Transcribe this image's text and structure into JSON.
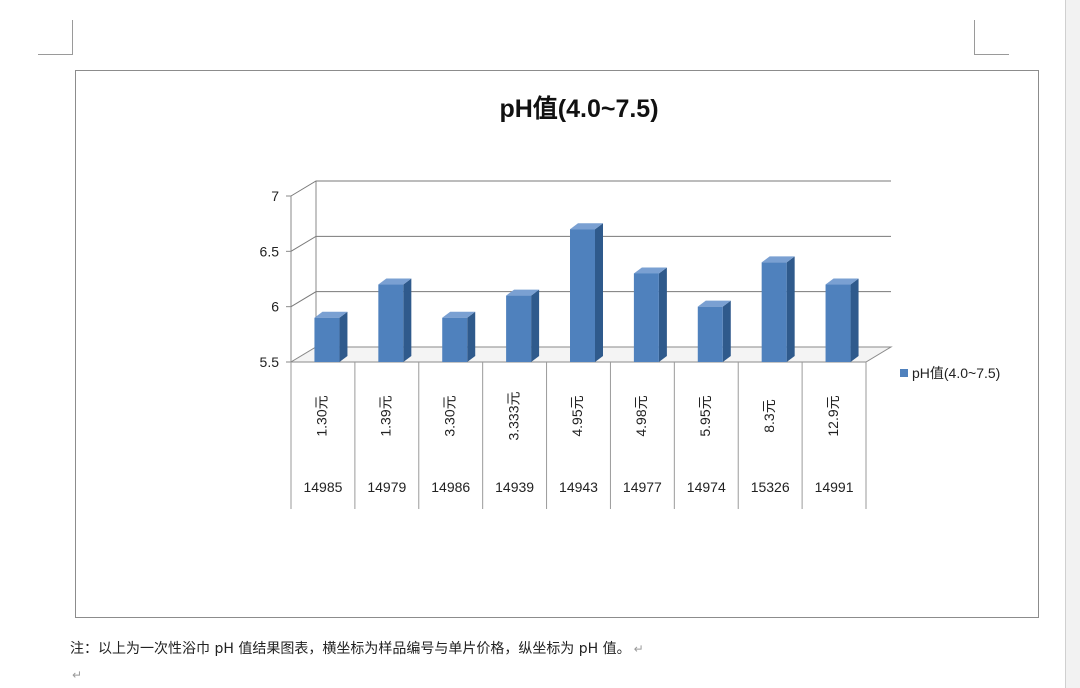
{
  "document": {
    "note": "注：以上为一次性浴巾 pH 值结果图表，横坐标为样品编号与单片价格，纵坐标为 pH 值。",
    "paragraph_mark": "↵"
  },
  "chart_data": {
    "type": "bar",
    "title": "pH值(4.0~7.5)",
    "categories": [
      {
        "price": "1.30元",
        "sample": "14985"
      },
      {
        "price": "1.39元",
        "sample": "14979"
      },
      {
        "price": "3.30元",
        "sample": "14986"
      },
      {
        "price": "3.333元",
        "sample": "14939"
      },
      {
        "price": "4.95元",
        "sample": "14943"
      },
      {
        "price": "4.98元",
        "sample": "14977"
      },
      {
        "price": "5.95元",
        "sample": "14974"
      },
      {
        "price": "8.3元",
        "sample": "15326"
      },
      {
        "price": "12.9元",
        "sample": "14991"
      }
    ],
    "series": [
      {
        "name": "pH值(4.0~7.5)",
        "values": [
          5.9,
          6.2,
          5.9,
          6.1,
          6.7,
          6.3,
          6.0,
          6.4,
          6.2
        ]
      }
    ],
    "ylim": [
      5.5,
      7
    ],
    "yticks": [
      "5.5",
      "6",
      "6.5",
      "7"
    ],
    "grid": true,
    "legend": "right",
    "colors": {
      "bar_front": "#4f81bd",
      "bar_side": "#2f5a8c",
      "bar_top": "#7aa0d2"
    }
  }
}
